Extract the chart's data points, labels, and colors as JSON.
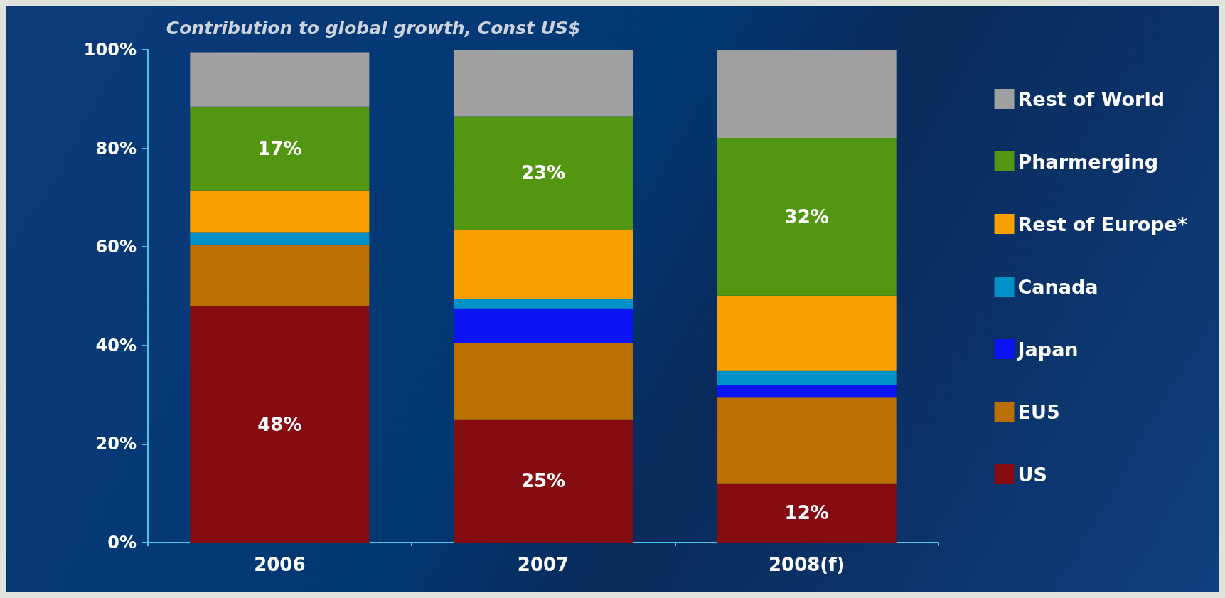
{
  "chart_data": {
    "type": "bar",
    "title": "Contribution to global growth, Const US$",
    "stacked": true,
    "categories": [
      "2006",
      "2007",
      "2008(f)"
    ],
    "ylim": [
      0,
      100
    ],
    "yticks": [
      {
        "value": 0,
        "label": "0%"
      },
      {
        "value": 20,
        "label": "20%"
      },
      {
        "value": 40,
        "label": "40%"
      },
      {
        "value": 60,
        "label": "60%"
      },
      {
        "value": 80,
        "label": "80%"
      },
      {
        "value": 100,
        "label": "100%"
      }
    ],
    "grid": false,
    "legend": "right",
    "series": [
      {
        "name": "US",
        "color": "#850c10",
        "values": [
          48,
          25,
          12
        ],
        "value_labels": [
          "48%",
          "25%",
          "12%"
        ]
      },
      {
        "name": "EU5",
        "color": "#bb6f00",
        "values": [
          12.5,
          15.5,
          17.4
        ]
      },
      {
        "name": "Japan",
        "color": "#0a14f5",
        "values": [
          null,
          7,
          2.6
        ]
      },
      {
        "name": "Canada",
        "color": "#0091c8",
        "values": [
          2.5,
          2,
          2.8
        ]
      },
      {
        "name": "Rest of Europe*",
        "color": "#f9a000",
        "values": [
          8.5,
          14,
          15.3
        ]
      },
      {
        "name": "Pharmerging",
        "color": "#539612",
        "values": [
          17,
          23,
          32
        ],
        "value_labels": [
          "17%",
          "23%",
          "32%"
        ]
      },
      {
        "name": "Rest of World",
        "color": "#a0a0a0",
        "values": [
          11,
          13.5,
          17.9
        ]
      }
    ]
  }
}
